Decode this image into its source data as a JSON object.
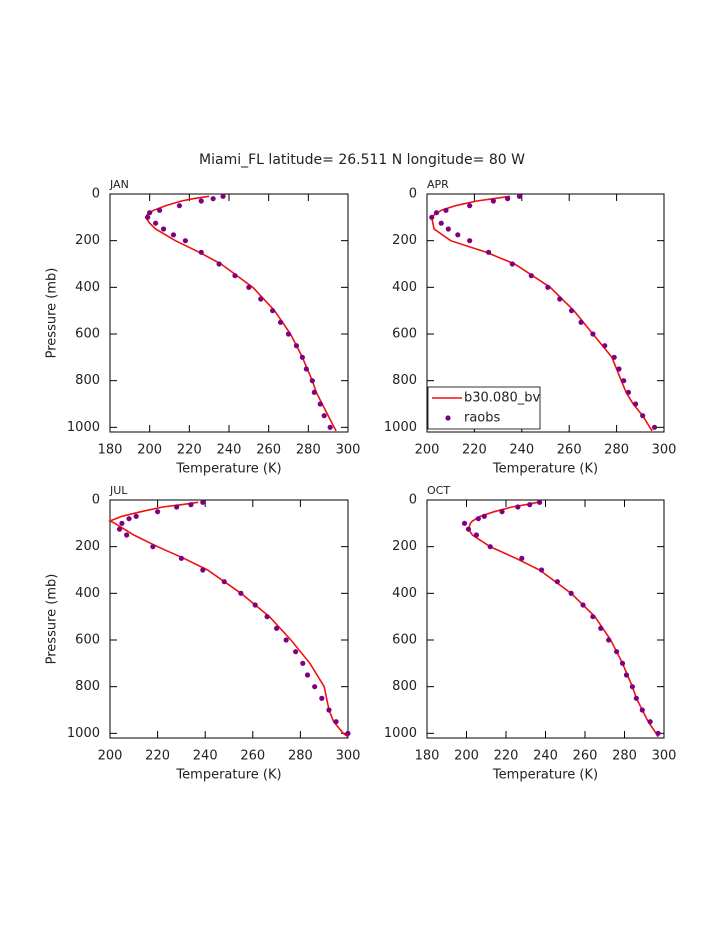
{
  "title": "Miami_FL  latitude= 26.511 N longitude= 80 W",
  "chart_data": [
    {
      "type": "line",
      "title": "JAN",
      "xlabel": "Temperature (K)",
      "ylabel": "Pressure (mb)",
      "xlim": [
        180,
        300
      ],
      "ylim": [
        1020,
        0
      ],
      "xticks": [
        180,
        200,
        220,
        240,
        260,
        280,
        300
      ],
      "yticks": [
        0,
        200,
        400,
        600,
        800,
        1000
      ],
      "series": [
        {
          "type": "line",
          "color": "#ee1111",
          "x": [
            230,
            222,
            216,
            208,
            202,
            199,
            198,
            200,
            203,
            213,
            225,
            236,
            252,
            263,
            271,
            277,
            282,
            284,
            287,
            290,
            293,
            294
          ],
          "y": [
            10,
            20,
            30,
            50,
            70,
            85,
            100,
            125,
            150,
            200,
            250,
            300,
            400,
            500,
            600,
            700,
            800,
            850,
            900,
            950,
            1000,
            1015
          ]
        },
        {
          "type": "scatter",
          "color": "#800080",
          "x": [
            237,
            232,
            226,
            215,
            205,
            200,
            199,
            203,
            207,
            212,
            218,
            226,
            235,
            243,
            250,
            256,
            262,
            266,
            270,
            274,
            277,
            279,
            282,
            283,
            286,
            288,
            291
          ],
          "y": [
            10,
            20,
            30,
            50,
            70,
            80,
            100,
            125,
            150,
            175,
            200,
            250,
            300,
            350,
            400,
            450,
            500,
            550,
            600,
            650,
            700,
            750,
            800,
            850,
            900,
            950,
            1000
          ]
        }
      ]
    },
    {
      "type": "line",
      "title": "APR",
      "xlabel": "Temperature (K)",
      "legend": "lower left",
      "xlim": [
        200,
        300
      ],
      "ylim": [
        1020,
        0
      ],
      "xticks": [
        200,
        220,
        240,
        260,
        280,
        300
      ],
      "yticks": [
        0,
        200,
        400,
        600,
        800,
        1000
      ],
      "series": [
        {
          "type": "line",
          "name": "b30.080_bv",
          "color": "#ee1111",
          "x": [
            235,
            228,
            221,
            212,
            206,
            203,
            202,
            203,
            210,
            225,
            237,
            252,
            262,
            270,
            278,
            282,
            284,
            287,
            291,
            294,
            295
          ],
          "y": [
            10,
            20,
            30,
            50,
            70,
            90,
            100,
            150,
            200,
            250,
            300,
            400,
            500,
            600,
            700,
            800,
            850,
            900,
            950,
            1000,
            1015
          ]
        },
        {
          "type": "scatter",
          "name": "raobs",
          "color": "#800080",
          "x": [
            239,
            234,
            228,
            218,
            208,
            204,
            202,
            206,
            209,
            213,
            218,
            226,
            236,
            244,
            251,
            256,
            261,
            265,
            270,
            275,
            279,
            281,
            283,
            285,
            288,
            291,
            296
          ],
          "y": [
            10,
            20,
            30,
            50,
            70,
            80,
            100,
            125,
            150,
            175,
            200,
            250,
            300,
            350,
            400,
            450,
            500,
            550,
            600,
            650,
            700,
            750,
            800,
            850,
            900,
            950,
            1000
          ]
        }
      ]
    },
    {
      "type": "line",
      "title": "JUL",
      "xlabel": "Temperature (K)",
      "ylabel": "Pressure (mb)",
      "xlim": [
        200,
        300
      ],
      "ylim": [
        1020,
        0
      ],
      "xticks": [
        200,
        220,
        240,
        260,
        280,
        300
      ],
      "yticks": [
        0,
        200,
        400,
        600,
        800,
        1000
      ],
      "series": [
        {
          "type": "line",
          "color": "#ee1111",
          "x": [
            237,
            230,
            222,
            213,
            205,
            200,
            202,
            206,
            210,
            220,
            231,
            241,
            255,
            267,
            276,
            284,
            290,
            291,
            292,
            294,
            298,
            300
          ],
          "y": [
            10,
            20,
            30,
            50,
            70,
            90,
            100,
            125,
            150,
            200,
            250,
            300,
            400,
            500,
            600,
            700,
            800,
            850,
            900,
            950,
            1000,
            1015
          ]
        },
        {
          "type": "scatter",
          "color": "#800080",
          "x": [
            239,
            234,
            228,
            220,
            211,
            208,
            205,
            204,
            207,
            218,
            230,
            239,
            248,
            255,
            261,
            266,
            270,
            274,
            278,
            281,
            283,
            286,
            289,
            292,
            295,
            300
          ],
          "y": [
            10,
            20,
            30,
            50,
            70,
            80,
            100,
            125,
            150,
            200,
            250,
            300,
            350,
            400,
            450,
            500,
            550,
            600,
            650,
            700,
            750,
            800,
            850,
            900,
            950,
            1000
          ]
        }
      ]
    },
    {
      "type": "line",
      "title": "OCT",
      "xlabel": "Temperature (K)",
      "xlim": [
        180,
        300
      ],
      "ylim": [
        1020,
        0
      ],
      "xticks": [
        180,
        200,
        220,
        240,
        260,
        280,
        300
      ],
      "yticks": [
        0,
        200,
        400,
        600,
        800,
        1000
      ],
      "series": [
        {
          "type": "line",
          "color": "#ee1111",
          "x": [
            236,
            230,
            223,
            214,
            207,
            203,
            202,
            201,
            203,
            212,
            225,
            237,
            253,
            265,
            273,
            279,
            284,
            286,
            289,
            292,
            296,
            297
          ],
          "y": [
            10,
            20,
            30,
            50,
            70,
            90,
            100,
            125,
            150,
            200,
            250,
            300,
            400,
            500,
            600,
            700,
            800,
            850,
            900,
            950,
            1000,
            1015
          ]
        },
        {
          "type": "scatter",
          "color": "#800080",
          "x": [
            237,
            232,
            226,
            218,
            209,
            206,
            199,
            201,
            205,
            212,
            228,
            238,
            246,
            253,
            259,
            264,
            268,
            272,
            276,
            279,
            281,
            284,
            286,
            289,
            293,
            297
          ],
          "y": [
            10,
            20,
            30,
            50,
            70,
            80,
            100,
            125,
            150,
            200,
            250,
            300,
            350,
            400,
            450,
            500,
            550,
            600,
            650,
            700,
            750,
            800,
            850,
            900,
            950,
            1000
          ]
        }
      ]
    }
  ]
}
